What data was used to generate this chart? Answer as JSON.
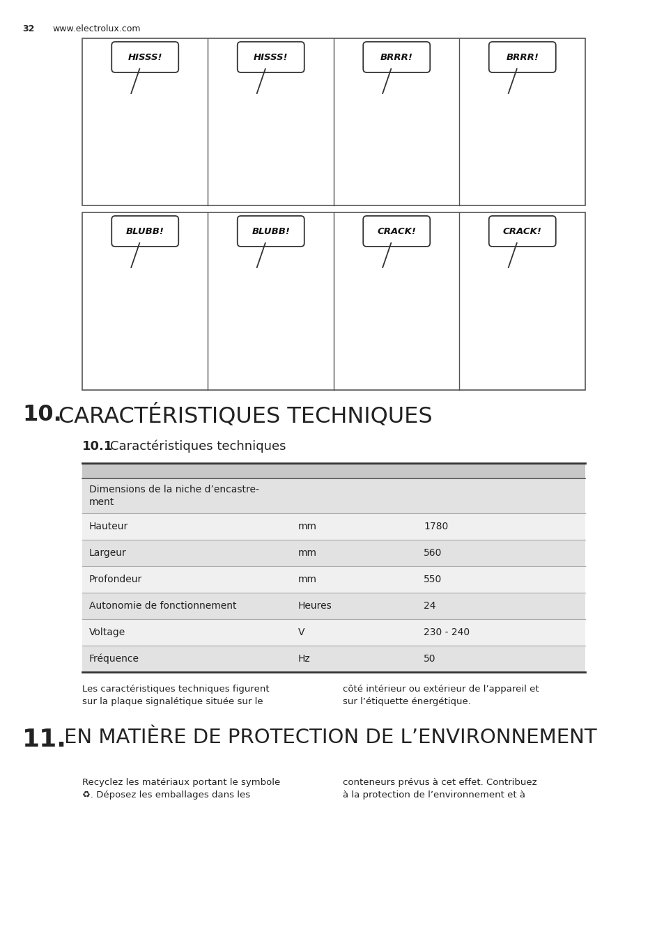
{
  "page_number": "32",
  "website": "www.electrolux.com",
  "background_color": "#ffffff",
  "section10_number": "10.",
  "section10_title": "CARACTÉRISTIQUES TECHNIQUES",
  "subsection10_1_number": "10.1",
  "subsection10_1_title": "Caractéristiques techniques",
  "table_rows": [
    {
      "label": "Dimensions de la niche d’encastre-\nment",
      "unit": "",
      "value": "",
      "bg": "#e2e2e2"
    },
    {
      "label": "Hauteur",
      "unit": "mm",
      "value": "1780",
      "bg": "#f0f0f0"
    },
    {
      "label": "Largeur",
      "unit": "mm",
      "value": "560",
      "bg": "#e2e2e2"
    },
    {
      "label": "Profondeur",
      "unit": "mm",
      "value": "550",
      "bg": "#f0f0f0"
    },
    {
      "label": "Autonomie de fonctionnement",
      "unit": "Heures",
      "value": "24",
      "bg": "#e2e2e2"
    },
    {
      "label": "Voltage",
      "unit": "V",
      "value": "230 - 240",
      "bg": "#f0f0f0"
    },
    {
      "label": "Fréquence",
      "unit": "Hz",
      "value": "50",
      "bg": "#e2e2e2"
    }
  ],
  "note_left": "Les caractéristiques techniques figurent\nsur la plaque signalétique située sur le",
  "note_right": "côté intérieur ou extérieur de l’appareil et\nsur l’étiquette énergétique.",
  "section11_number": "11.",
  "section11_title": "EN MATIÈRE DE PROTECTION DE L’ENVIRONNEMENT",
  "recycling_left": "Recyclez les matériaux portant le symbole\n♻. Déposez les emballages dans les",
  "recycling_right": "conteneurs prévus à cet effet. Contribuez\nà la protection de l’environnement et à",
  "bubble_texts_top": [
    "HISSS!",
    "HISSS!",
    "BRRR!",
    "BRRR!"
  ],
  "bubble_texts_bot": [
    "BLUBB!",
    "BLUBB!",
    "CRACK!",
    "CRACK!"
  ],
  "box_edge_color": "#555555",
  "bubble_edge_color": "#333333",
  "text_color": "#222222",
  "divider_color": "#888888"
}
